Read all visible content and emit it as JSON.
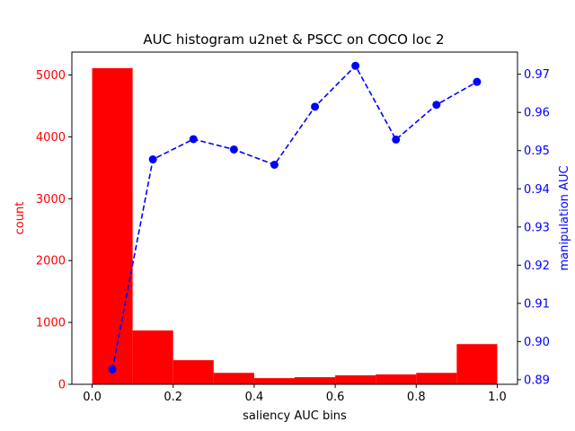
{
  "chart_data": {
    "type": "bar",
    "title": "AUC histogram u2net & PSCC on COCO loc 2",
    "xlabel": "saliency AUC bins",
    "ylabel_left": "count",
    "ylabel_right": "manipulation AUC",
    "xlim": [
      -0.05,
      1.05
    ],
    "ylim_left": [
      0,
      5370
    ],
    "ylim_right": [
      0.8888,
      0.9758
    ],
    "x_ticks": [
      "0.0",
      "0.2",
      "0.4",
      "0.6",
      "0.8",
      "1.0"
    ],
    "y_left_ticks": [
      "0",
      "1000",
      "2000",
      "3000",
      "4000",
      "5000"
    ],
    "y_right_ticks": [
      "0.89",
      "0.90",
      "0.91",
      "0.92",
      "0.93",
      "0.94",
      "0.95",
      "0.96",
      "0.97"
    ],
    "bin_edges": [
      0.0,
      0.1,
      0.2,
      0.3,
      0.4,
      0.5,
      0.6,
      0.7,
      0.8,
      0.9,
      1.0
    ],
    "series": [
      {
        "type": "bar",
        "axis": "left",
        "color": "#ff0000",
        "values": [
          5110,
          870,
          390,
          185,
          100,
          115,
          145,
          160,
          185,
          650
        ]
      },
      {
        "type": "line",
        "axis": "right",
        "color": "#0000ff",
        "style": "dashed",
        "marker": "circle",
        "x": [
          0.05,
          0.15,
          0.25,
          0.35,
          0.45,
          0.55,
          0.65,
          0.75,
          0.85,
          0.95
        ],
        "values": [
          0.8927,
          0.9477,
          0.953,
          0.9503,
          0.9463,
          0.9615,
          0.9722,
          0.9529,
          0.962,
          0.968
        ]
      }
    ],
    "colors": {
      "left_axis": "#ff0000",
      "right_axis": "#0000ff",
      "frame": "#000000"
    },
    "grid": false
  }
}
